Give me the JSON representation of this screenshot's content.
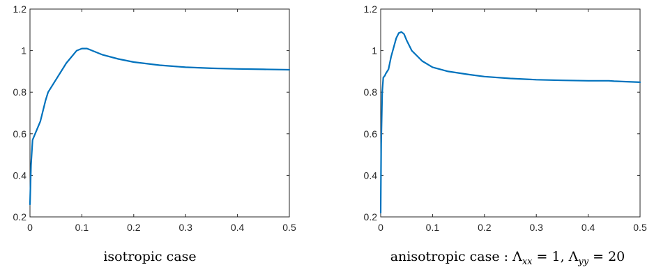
{
  "colors": {
    "line": "#0072BD",
    "axis": "#262626"
  },
  "chart_data": [
    {
      "type": "line",
      "title": "",
      "caption": "isotropic case",
      "xlim": [
        0,
        0.5
      ],
      "ylim": [
        0.2,
        1.2
      ],
      "xticks": [
        "0",
        "0.1",
        "0.2",
        "0.3",
        "0.4",
        "0.5"
      ],
      "yticks": [
        "0.2",
        "0.4",
        "0.6",
        "0.8",
        "1",
        "1.2"
      ],
      "grid": false,
      "series": [
        {
          "x": [
            0,
            0.002,
            0.005,
            0.01,
            0.02,
            0.03,
            0.035,
            0.05,
            0.07,
            0.09,
            0.1,
            0.11,
            0.12,
            0.14,
            0.17,
            0.2,
            0.25,
            0.3,
            0.35,
            0.4,
            0.45,
            0.5
          ],
          "y": [
            0.26,
            0.45,
            0.57,
            0.6,
            0.66,
            0.76,
            0.8,
            0.86,
            0.94,
            1.0,
            1.01,
            1.01,
            1.0,
            0.98,
            0.96,
            0.945,
            0.93,
            0.92,
            0.915,
            0.912,
            0.91,
            0.908
          ]
        }
      ]
    },
    {
      "type": "line",
      "title": "",
      "caption": "anisotropic case : Λxx = 1, Λyy = 20",
      "caption_math": {
        "prefix": "anisotropic case : ",
        "sym1": "Λ",
        "sub1": "xx",
        "eq1": " = 1, ",
        "sym2": "Λ",
        "sub2": "yy",
        "eq2": " = 20"
      },
      "xlim": [
        0,
        0.5
      ],
      "ylim": [
        0.2,
        1.2
      ],
      "xticks": [
        "0",
        "0.1",
        "0.2",
        "0.3",
        "0.4",
        "0.5"
      ],
      "yticks": [
        "0.2",
        "0.4",
        "0.6",
        "0.8",
        "1",
        "1.2"
      ],
      "grid": false,
      "series": [
        {
          "x": [
            0,
            0.001,
            0.003,
            0.005,
            0.008,
            0.01,
            0.015,
            0.02,
            0.03,
            0.035,
            0.04,
            0.045,
            0.05,
            0.06,
            0.08,
            0.1,
            0.13,
            0.17,
            0.2,
            0.25,
            0.3,
            0.35,
            0.4,
            0.44,
            0.45,
            0.5
          ],
          "y": [
            0.22,
            0.55,
            0.8,
            0.87,
            0.88,
            0.89,
            0.91,
            0.97,
            1.06,
            1.085,
            1.09,
            1.08,
            1.05,
            1.0,
            0.95,
            0.92,
            0.9,
            0.885,
            0.875,
            0.866,
            0.86,
            0.857,
            0.855,
            0.855,
            0.853,
            0.848
          ]
        }
      ]
    }
  ]
}
